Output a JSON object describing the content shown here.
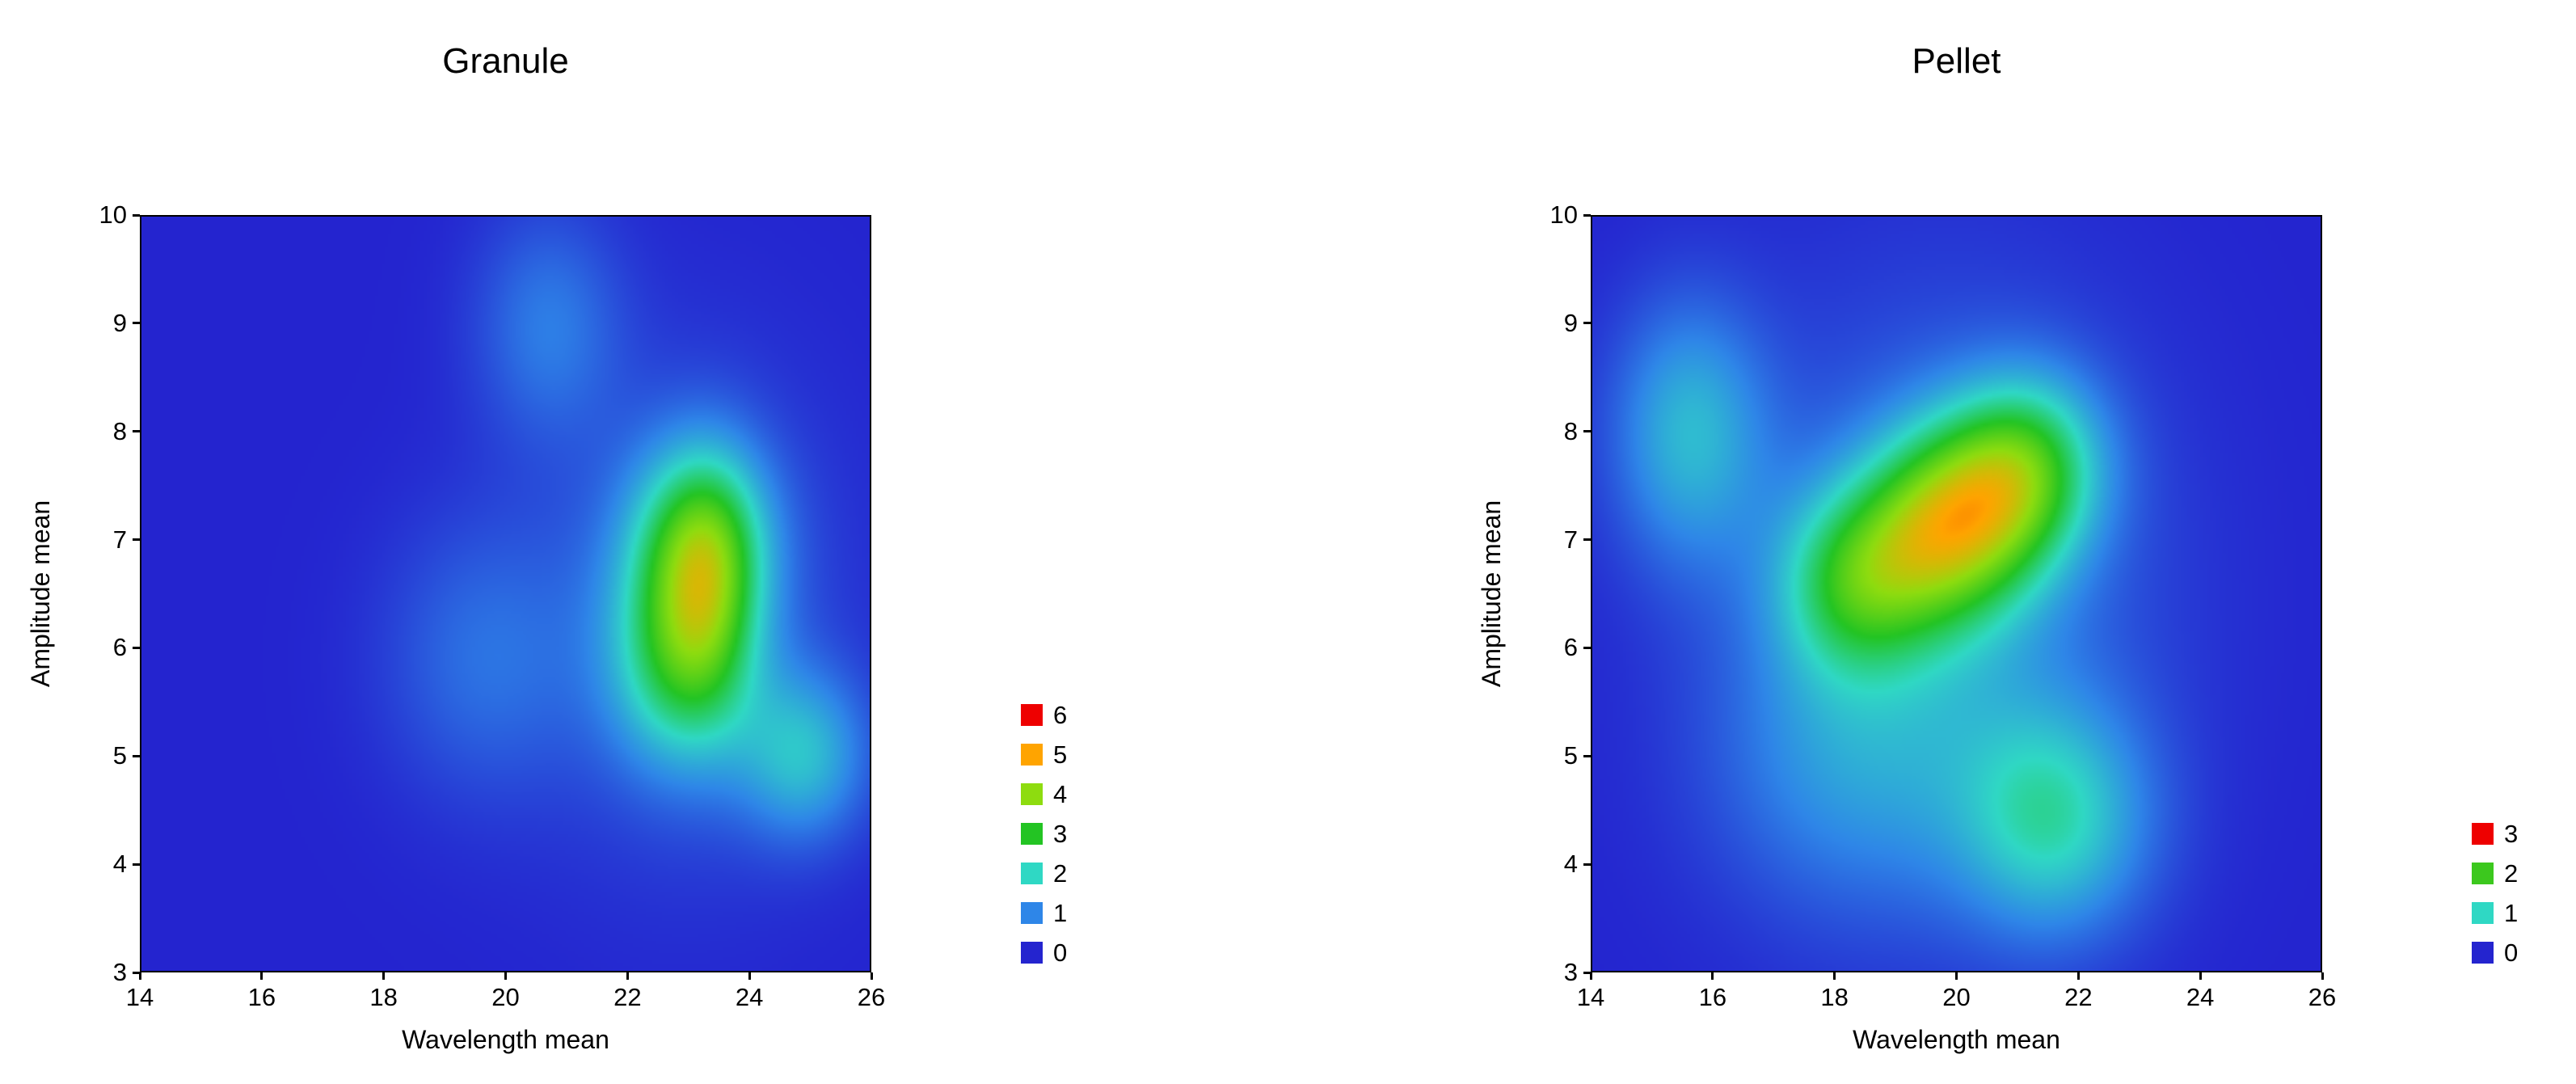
{
  "figure": {
    "background": "#FFFFFF"
  },
  "colormap": {
    "description": "spectral density colormap low-to-high",
    "stops": [
      {
        "t": 0.0,
        "color": "#2424CF"
      },
      {
        "t": 0.167,
        "color": "#2E86E8"
      },
      {
        "t": 0.333,
        "color": "#2FD8C4"
      },
      {
        "t": 0.5,
        "color": "#23C423"
      },
      {
        "t": 0.667,
        "color": "#8EDC0F"
      },
      {
        "t": 0.833,
        "color": "#FFA400"
      },
      {
        "t": 1.0,
        "color": "#EE0000"
      }
    ]
  },
  "chart_data": [
    {
      "type": "heatmap",
      "title": "Granule",
      "xlabel": "Wavelength mean",
      "ylabel": "Amplitude mean",
      "xlim": [
        14,
        26
      ],
      "ylim": [
        3,
        10
      ],
      "xticks": [
        14,
        16,
        18,
        20,
        22,
        24,
        26
      ],
      "yticks": [
        3,
        4,
        5,
        6,
        7,
        8,
        9,
        10
      ],
      "grid": false,
      "axis_box": true,
      "legend_position": "right-bottom",
      "zmax": 6,
      "legend": {
        "levels": [
          6,
          5,
          4,
          3,
          2,
          1,
          0
        ],
        "colors": [
          "#EE0000",
          "#FFA400",
          "#8EDC0F",
          "#23C423",
          "#2FD8C4",
          "#2E86E8",
          "#2424CF"
        ]
      },
      "peak": {
        "x": 23.2,
        "y": 6.9,
        "value": 4.6
      },
      "density_components": [
        {
          "x": 23.2,
          "y": 7.0,
          "a": 2.4,
          "sx": 0.8,
          "sy": 0.65
        },
        {
          "x": 22.9,
          "y": 5.9,
          "a": 2.2,
          "sx": 0.8,
          "sy": 0.7
        },
        {
          "x": 23.4,
          "y": 6.5,
          "a": 0.9,
          "sx": 0.55,
          "sy": 0.8
        },
        {
          "x": 24.9,
          "y": 5.0,
          "a": 1.5,
          "sx": 0.75,
          "sy": 0.55
        },
        {
          "x": 20.7,
          "y": 9.0,
          "a": 0.85,
          "sx": 0.85,
          "sy": 0.75
        },
        {
          "x": 19.6,
          "y": 5.9,
          "a": 0.7,
          "sx": 1.15,
          "sy": 0.9
        },
        {
          "x": 22.9,
          "y": 6.3,
          "a": 0.6,
          "sx": 1.8,
          "sy": 1.6
        }
      ]
    },
    {
      "type": "heatmap",
      "title": "Pellet",
      "xlabel": "Wavelength mean",
      "ylabel": "Amplitude mean",
      "xlim": [
        14,
        26
      ],
      "ylim": [
        3,
        10
      ],
      "xticks": [
        14,
        16,
        18,
        20,
        22,
        24,
        26
      ],
      "yticks": [
        3,
        4,
        5,
        6,
        7,
        8,
        9,
        10
      ],
      "grid": false,
      "axis_box": true,
      "legend_position": "right-bottom",
      "zmax": 3,
      "legend": {
        "levels": [
          3,
          2,
          1,
          0
        ],
        "colors": [
          "#EE0000",
          "#3CC81E",
          "#2FD8C4",
          "#2424CF"
        ]
      },
      "peak": {
        "x": 20.3,
        "y": 7.3,
        "value": 2.5
      },
      "density_components": [
        {
          "x": 18.2,
          "y": 6.6,
          "a": 0.9,
          "sx": 0.85,
          "sy": 0.6
        },
        {
          "x": 19.4,
          "y": 7.0,
          "a": 1.05,
          "sx": 0.9,
          "sy": 0.65
        },
        {
          "x": 20.4,
          "y": 7.3,
          "a": 1.15,
          "sx": 0.9,
          "sy": 0.65
        },
        {
          "x": 21.3,
          "y": 7.7,
          "a": 0.95,
          "sx": 0.85,
          "sy": 0.6
        },
        {
          "x": 21.6,
          "y": 4.4,
          "a": 0.9,
          "sx": 1.1,
          "sy": 0.75
        },
        {
          "x": 15.6,
          "y": 8.0,
          "a": 0.75,
          "sx": 0.9,
          "sy": 0.85
        },
        {
          "x": 18.3,
          "y": 5.0,
          "a": 0.45,
          "sx": 1.6,
          "sy": 1.0
        },
        {
          "x": 19.8,
          "y": 6.5,
          "a": 0.45,
          "sx": 2.4,
          "sy": 1.9
        }
      ]
    }
  ]
}
